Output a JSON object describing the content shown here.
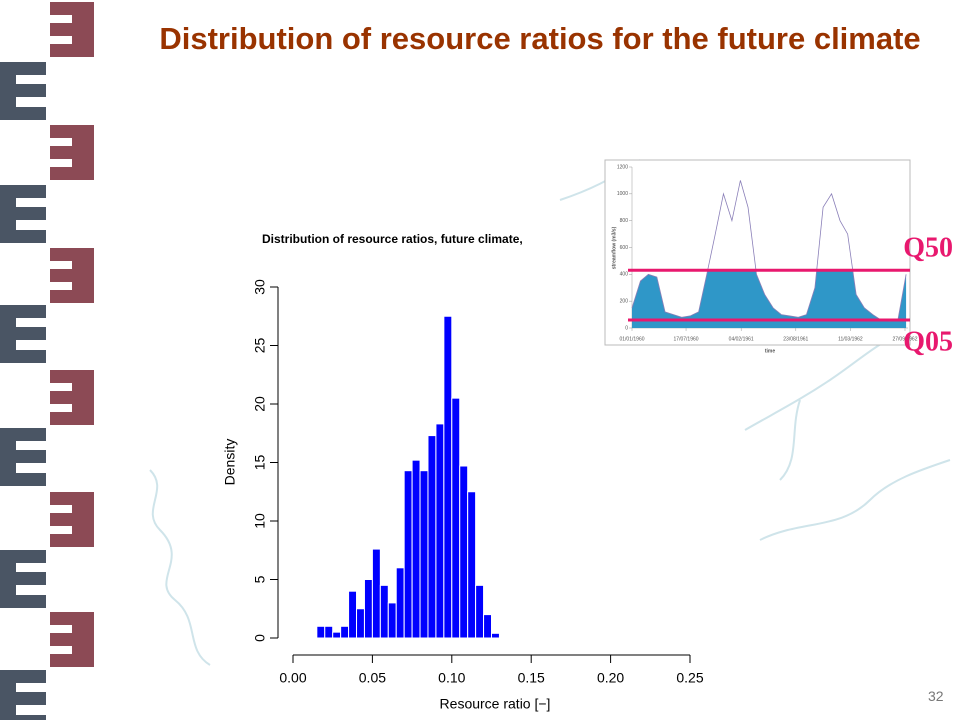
{
  "slide": {
    "title": "Distribution of resource ratios for the future climate",
    "page_number": "32"
  },
  "chart_data": [
    {
      "type": "histogram",
      "title": "Distribution of resource ratios, future climate,",
      "x_label": "Resource ratio [−]",
      "y_label": "Density",
      "bins": [
        0.015,
        0.02,
        0.025,
        0.03,
        0.035,
        0.04,
        0.045,
        0.05,
        0.055,
        0.06,
        0.065,
        0.07,
        0.075,
        0.08,
        0.085,
        0.09,
        0.095,
        0.1,
        0.105,
        0.11,
        0.115,
        0.12,
        0.125,
        0.13
      ],
      "values": [
        1,
        1,
        0.5,
        1,
        4,
        2.5,
        5,
        7.6,
        4.5,
        3,
        6,
        14.3,
        15.2,
        14.3,
        17.3,
        18.3,
        27.5,
        20.5,
        14.7,
        12.5,
        4.5,
        2,
        0.4
      ],
      "color": "#0000ff",
      "xlim": [
        0,
        0.25
      ],
      "xticks": [
        {
          "value": 0,
          "label": "0.00"
        },
        0.05,
        {
          "value": 0.1,
          "label": "0.10"
        },
        0.15,
        {
          "value": 0.2,
          "label": "0.20"
        },
        0.25
      ],
      "ylim": [
        0,
        30
      ],
      "yticks": [
        0,
        5,
        10,
        15,
        20,
        25,
        30
      ]
    },
    {
      "type": "area",
      "x_label": "time",
      "y_label": "streamflow (m3/s)",
      "x": [
        "1960-01-01",
        "1960-02-01",
        "1960-03-01",
        "1960-04-01",
        "1960-05-01",
        "1960-06-01",
        "1960-07-01",
        "1960-08-01",
        "1960-09-01",
        "1960-10-01",
        "1960-11-01",
        "1960-12-01",
        "1961-01-01",
        "1961-02-01",
        "1961-03-01",
        "1961-04-01",
        "1961-05-01",
        "1961-06-01",
        "1961-07-01",
        "1961-08-01",
        "1961-09-01",
        "1961-10-01",
        "1961-11-01",
        "1961-12-01",
        "1962-01-01",
        "1962-02-01",
        "1962-03-01",
        "1962-04-01",
        "1962-05-01",
        "1962-06-01",
        "1962-07-01",
        "1962-08-01",
        "1962-09-01",
        "1962-10-01"
      ],
      "values": [
        150,
        350,
        400,
        380,
        120,
        100,
        80,
        90,
        120,
        400,
        700,
        1000,
        800,
        1100,
        900,
        400,
        250,
        150,
        100,
        90,
        80,
        100,
        300,
        900,
        1000,
        800,
        700,
        250,
        150,
        100,
        60,
        50,
        60,
        400
      ],
      "line_color": "#8a7fb8",
      "fill_color": "#2f97c8",
      "xlim": [
        "1960-01-01",
        "1962-10-08"
      ],
      "xticks": [
        {
          "value": "1960-01-01",
          "label": "01/01/1960"
        },
        {
          "value": "1960-07-17",
          "label": "17/07/1960"
        },
        {
          "value": "1961-02-04",
          "label": "04/02/1961"
        },
        {
          "value": "1961-08-23",
          "label": "23/08/1961"
        },
        {
          "value": "1962-03-11",
          "label": "11/03/1962"
        },
        {
          "value": "1962-09-27",
          "label": "27/09/1962"
        }
      ],
      "ylim": [
        0,
        1200
      ],
      "yticks": [
        0,
        200,
        400,
        600,
        800,
        1000,
        1200
      ],
      "hlines": [
        {
          "label": "Q50",
          "value": 430,
          "color": "#e8186e"
        },
        {
          "label": "Q05",
          "value": 60,
          "color": "#e8186e"
        }
      ]
    }
  ]
}
